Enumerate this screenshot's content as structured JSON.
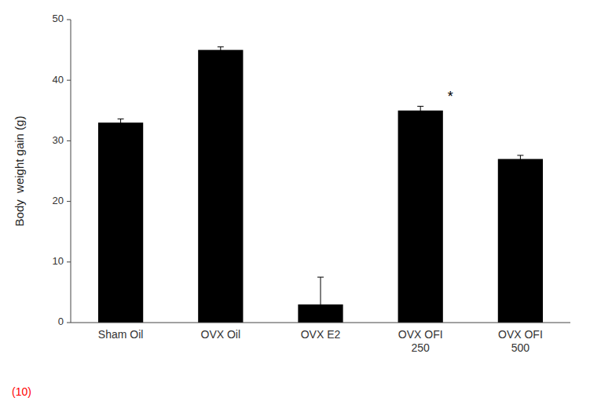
{
  "chart_data": {
    "type": "bar",
    "categories": [
      "Sham Oil",
      "OVX Oil",
      "OVX E2",
      "OVX OFI\n250",
      "OVX OFI\n500"
    ],
    "values": [
      33.0,
      45.0,
      3.0,
      35.0,
      27.0
    ],
    "errors": [
      0.6,
      0.5,
      4.5,
      0.7,
      0.6
    ],
    "color": "#000000",
    "ylabel": "Body  weight gain (g)",
    "ylim": [
      0,
      50
    ],
    "yticks": [
      0,
      10,
      20,
      30,
      40,
      50
    ],
    "grid": false,
    "annotations": [
      {
        "text": "*",
        "category": "OVX OFI\n250"
      }
    ],
    "footnote": {
      "text": "(10)",
      "color": "#ff0000"
    }
  }
}
